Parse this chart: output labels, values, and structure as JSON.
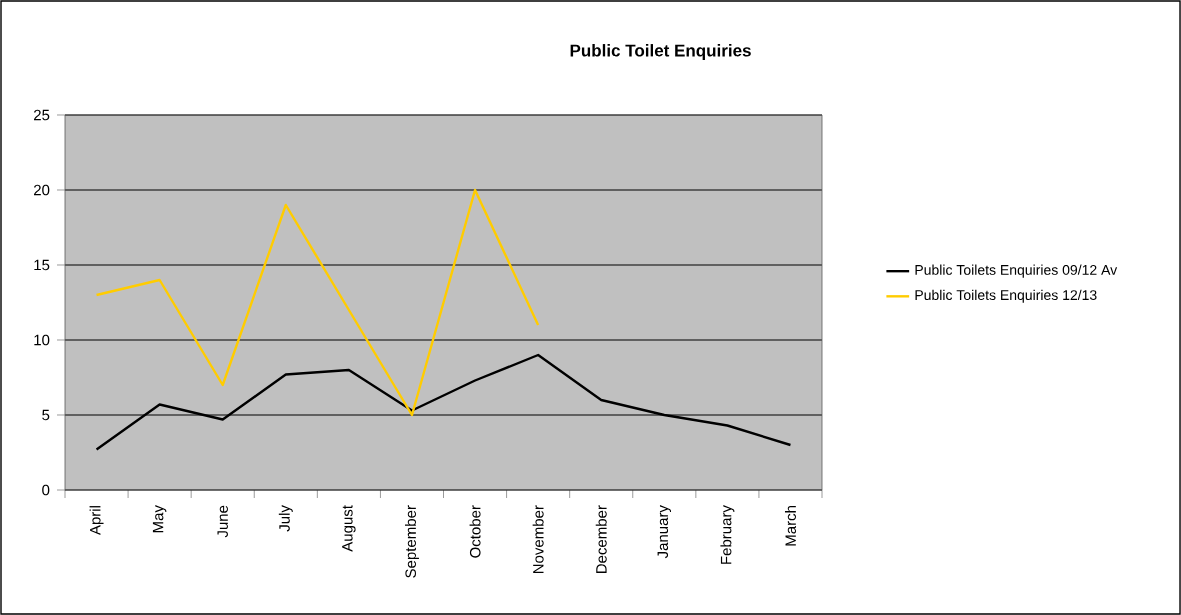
{
  "chart_data": {
    "type": "line",
    "title": "Public Toilet Enquiries",
    "categories": [
      "April",
      "May",
      "June",
      "July",
      "August",
      "September",
      "October",
      "November",
      "December",
      "January",
      "February",
      "March"
    ],
    "series": [
      {
        "name": "Public Toilets Enquiries 09/12 Av",
        "color": "#000000",
        "values": [
          2.7,
          5.7,
          4.7,
          7.7,
          8,
          5.3,
          7.3,
          9,
          6,
          5,
          4.3,
          3
        ]
      },
      {
        "name": "Public Toilets Enquiries 12/13",
        "color": "#ffcc00",
        "values": [
          13,
          14,
          7,
          19,
          12,
          5,
          20,
          11,
          null,
          null,
          null,
          null
        ]
      }
    ],
    "ylim": [
      0,
      25
    ],
    "yticks": [
      0,
      5,
      10,
      15,
      20,
      25
    ],
    "grid": "y",
    "legend": "right",
    "line_style": "solid"
  }
}
